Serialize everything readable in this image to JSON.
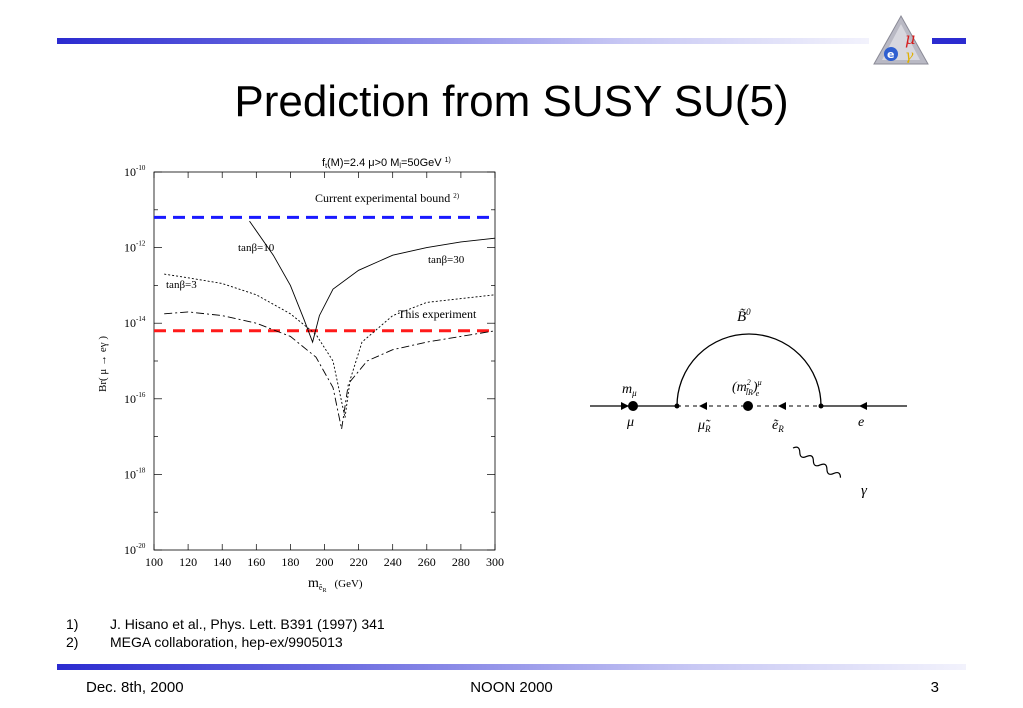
{
  "slide": {
    "title": "Prediction from SUSY SU(5)",
    "logo_text": {
      "mu": "μ",
      "e": "e",
      "gamma": "γ"
    }
  },
  "chart_data": {
    "type": "line",
    "title": "f",
    "title_sub": "t",
    "title_rest": "(M)=2.4  μ>0  M",
    "title_sub2": "l",
    "title_rest2": "=50GeV",
    "title_ref": "1)",
    "xlabel": "m",
    "xlabel_sub": "ẽ",
    "xlabel_sub2": "R",
    "xlabel_unit": "(GeV)",
    "ylabel": "Br( μ → eγ )",
    "xlim": [
      100,
      300
    ],
    "ylim_log10": [
      -20,
      -10
    ],
    "x_ticks": [
      "100",
      "120",
      "140",
      "160",
      "180",
      "200",
      "220",
      "240",
      "260",
      "280",
      "300"
    ],
    "y_ticks": [
      {
        "base": "10",
        "exp": "-10"
      },
      {
        "base": "10",
        "exp": "-12"
      },
      {
        "base": "10",
        "exp": "-14"
      },
      {
        "base": "10",
        "exp": "-16"
      },
      {
        "base": "10",
        "exp": "-18"
      },
      {
        "base": "10",
        "exp": "-20"
      }
    ],
    "y_log_values": [
      -10,
      -12,
      -14,
      -16,
      -18,
      -20
    ],
    "bounds": [
      {
        "label": "Current experimental bound",
        "ref": "2)",
        "log10_value": -11.2,
        "color": "#1a1aff"
      },
      {
        "label": "This experiment",
        "log10_value": -14.2,
        "color": "#ff1a1a"
      }
    ],
    "series": [
      {
        "name": "tanβ=30",
        "style": "solid",
        "points": [
          [
            156,
            -11.3
          ],
          [
            170,
            -12.2
          ],
          [
            180,
            -13.0
          ],
          [
            188,
            -13.9
          ],
          [
            193,
            -14.5
          ],
          [
            197,
            -13.8
          ],
          [
            205,
            -13.1
          ],
          [
            220,
            -12.6
          ],
          [
            240,
            -12.2
          ],
          [
            260,
            -12.0
          ],
          [
            280,
            -11.85
          ],
          [
            300,
            -11.75
          ]
        ]
      },
      {
        "name": "tanβ=10",
        "style": "dotted",
        "points": [
          [
            106,
            -12.7
          ],
          [
            120,
            -12.8
          ],
          [
            140,
            -12.95
          ],
          [
            160,
            -13.25
          ],
          [
            180,
            -13.75
          ],
          [
            195,
            -14.3
          ],
          [
            205,
            -15.0
          ],
          [
            212,
            -16.5
          ],
          [
            215,
            -15.5
          ],
          [
            222,
            -14.5
          ],
          [
            240,
            -13.8
          ],
          [
            260,
            -13.45
          ],
          [
            280,
            -13.35
          ],
          [
            300,
            -13.25
          ]
        ]
      },
      {
        "name": "tanβ=3",
        "style": "dashdot",
        "points": [
          [
            106,
            -13.75
          ],
          [
            120,
            -13.7
          ],
          [
            140,
            -13.8
          ],
          [
            160,
            -14.0
          ],
          [
            180,
            -14.35
          ],
          [
            195,
            -14.9
          ],
          [
            205,
            -15.7
          ],
          [
            210,
            -16.8
          ],
          [
            214,
            -15.6
          ],
          [
            225,
            -15.0
          ],
          [
            240,
            -14.7
          ],
          [
            260,
            -14.5
          ],
          [
            280,
            -14.35
          ],
          [
            300,
            -14.2
          ]
        ]
      }
    ],
    "curve_labels": [
      {
        "name": "tanβ=10",
        "text": "tanβ=10"
      },
      {
        "name": "tanβ=3",
        "text": "tanβ=3"
      },
      {
        "name": "tanβ=30",
        "text": "tanβ=30"
      }
    ]
  },
  "diagram": {
    "m_mu": "m",
    "m_mu_sub": "μ",
    "mu": "μ",
    "mu_tilde": "μ̃",
    "mu_tilde_sub": "R",
    "e_tilde": "ẽ",
    "e_tilde_sub": "R",
    "e": "e",
    "b_tilde": "B̃",
    "b_tilde_sup": "0",
    "mass_insertion": "(m",
    "mass_insertion_sup": "2",
    "mass_insertion_sub": "l̃R",
    "mass_insertion_close": ")",
    "mass_insertion_sup2": "μ",
    "mass_insertion_sub2": "e",
    "gamma": "γ"
  },
  "references": [
    {
      "num": "1)",
      "text": "J. Hisano et al., Phys. Lett. B391 (1997) 341"
    },
    {
      "num": "2)",
      "text": "MEGA collaboration, hep-ex/9905013"
    }
  ],
  "footer": {
    "date": "Dec. 8th, 2000",
    "event": "NOON 2000",
    "page": "3"
  }
}
